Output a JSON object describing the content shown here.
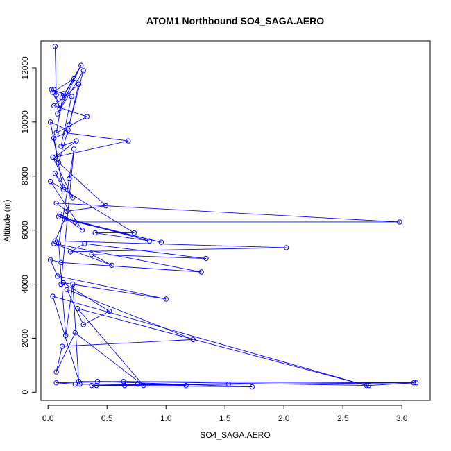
{
  "chart_data": {
    "type": "line",
    "title": "ATOM1 Northbound SO4_SAGA.AERO",
    "xlabel": "SO4_SAGA.AERO",
    "ylabel": "Altitude (m)",
    "xlim": [
      -0.06,
      3.24
    ],
    "ylim": [
      -300,
      13000
    ],
    "xticks": [
      0.0,
      0.5,
      1.0,
      1.5,
      2.0,
      2.5,
      3.0
    ],
    "xtick_labels": [
      "0.0",
      "0.5",
      "1.0",
      "1.5",
      "2.0",
      "2.5",
      "3.0"
    ],
    "yticks": [
      0,
      2000,
      4000,
      6000,
      8000,
      10000,
      12000
    ],
    "ytick_labels": [
      "0",
      "2000",
      "4000",
      "6000",
      "8000",
      "10000",
      "12000"
    ],
    "grid": false,
    "colors": {
      "series": "#0000ff",
      "axis": "#000000"
    },
    "series": [
      {
        "markers": "open-circle",
        "x": [
          0.06,
          0.07,
          0.05,
          0.1,
          0.04,
          0.22,
          0.12,
          0.28,
          0.08,
          0.3,
          0.18,
          0.26,
          0.05,
          0.33,
          0.07,
          0.13,
          0.03,
          0.2,
          0.11,
          0.24,
          0.06,
          0.68,
          0.15,
          0.05,
          0.09,
          0.17,
          0.02,
          0.13,
          0.06,
          0.21,
          0.04,
          0.49,
          0.16,
          0.07,
          2.98,
          0.23,
          0.1,
          0.29,
          0.02,
          0.73,
          0.4,
          0.86,
          0.09,
          0.96,
          0.14,
          0.06,
          2.02,
          0.19,
          0.31,
          1.34,
          0.37,
          0.54,
          0.05,
          1.3,
          0.11,
          0.02,
          0.08,
          1.0,
          0.13,
          0.52,
          0.3,
          0.16,
          1.23,
          0.12,
          0.07,
          0.23,
          0.81,
          0.25,
          2.7,
          0.04,
          0.27,
          1.53,
          0.37,
          3.1,
          0.42,
          1.73,
          0.41,
          0.65,
          0.76,
          1.17,
          0.23,
          0.07,
          0.64,
          2.72,
          3.12,
          0.26,
          0.21,
          0.15,
          0.09,
          0.18,
          0.22,
          0.11
        ],
        "y": [
          12800,
          11000,
          11200,
          10500,
          11100,
          11600,
          10900,
          12100,
          10300,
          11900,
          9900,
          11400,
          10600,
          10200,
          9600,
          11050,
          11200,
          10950,
          9100,
          9300,
          8700,
          9300,
          9600,
          9400,
          8500,
          9700,
          10000,
          7500,
          8100,
          7200,
          8700,
          6900,
          6700,
          7000,
          6300,
          6300,
          6600,
          6000,
          7800,
          5900,
          5900,
          5600,
          6500,
          5550,
          6400,
          5600,
          5350,
          5200,
          5500,
          4950,
          5100,
          4700,
          5500,
          4450,
          4800,
          4900,
          4300,
          3450,
          4050,
          3000,
          2500,
          3800,
          1950,
          1700,
          750,
          2200,
          250,
          3100,
          250,
          3550,
          300,
          300,
          250,
          350,
          400,
          200,
          250,
          250,
          300,
          250,
          300,
          350,
          400,
          250,
          350,
          400,
          4000,
          2100,
          5500,
          7900,
          9000,
          4000
        ]
      }
    ]
  }
}
